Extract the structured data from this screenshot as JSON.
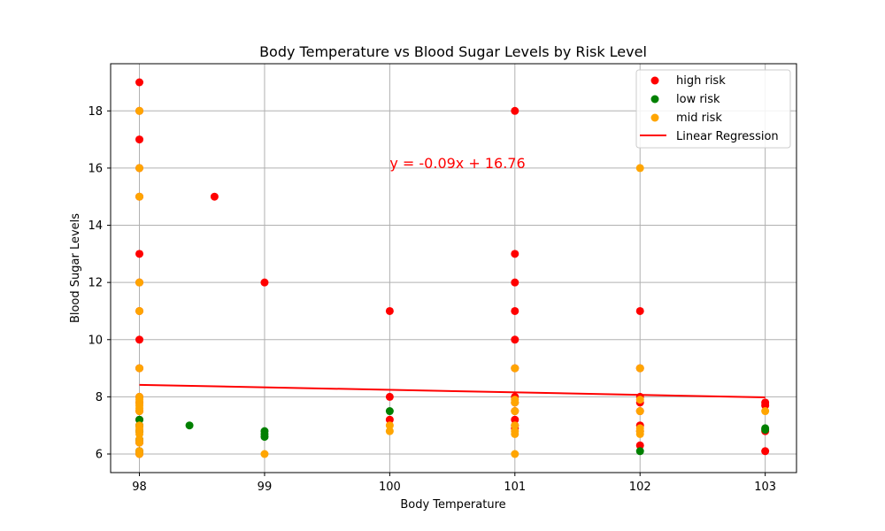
{
  "chart_data": {
    "type": "scatter",
    "title": "Body Temperature vs Blood Sugar Levels by Risk Level",
    "xlabel": "Body Temperature",
    "ylabel": "Blood Sugar Levels",
    "xlim": [
      97.77,
      103.25
    ],
    "ylim": [
      5.35,
      19.65
    ],
    "xticks": [
      98,
      99,
      100,
      101,
      102,
      103
    ],
    "yticks": [
      6,
      8,
      10,
      12,
      14,
      16,
      18
    ],
    "grid": true,
    "legend_position": "top-right",
    "series": [
      {
        "name": "high risk",
        "color": "#ff0000",
        "points": [
          [
            98,
            19
          ],
          [
            98,
            18
          ],
          [
            98,
            17
          ],
          [
            98,
            16
          ],
          [
            98,
            15
          ],
          [
            98,
            13
          ],
          [
            98,
            12
          ],
          [
            98,
            11
          ],
          [
            98,
            10
          ],
          [
            98,
            9
          ],
          [
            98,
            8
          ],
          [
            98,
            7.8
          ],
          [
            98,
            7.5
          ],
          [
            98,
            7.2
          ],
          [
            98,
            7
          ],
          [
            98,
            6.8
          ],
          [
            98,
            6.5
          ],
          [
            98,
            6.4
          ],
          [
            98,
            6.1
          ],
          [
            98,
            6
          ],
          [
            98.6,
            15
          ],
          [
            99,
            12
          ],
          [
            100,
            11
          ],
          [
            100,
            8
          ],
          [
            100,
            7.2
          ],
          [
            101,
            18
          ],
          [
            101,
            13
          ],
          [
            101,
            12
          ],
          [
            101,
            11
          ],
          [
            101,
            10
          ],
          [
            101,
            9
          ],
          [
            101,
            8
          ],
          [
            101,
            7.8
          ],
          [
            101,
            7.5
          ],
          [
            101,
            7.2
          ],
          [
            101,
            7
          ],
          [
            101,
            6.9
          ],
          [
            102,
            11
          ],
          [
            102,
            9
          ],
          [
            102,
            8
          ],
          [
            102,
            7.8
          ],
          [
            102,
            7.5
          ],
          [
            102,
            7
          ],
          [
            102,
            6.8
          ],
          [
            102,
            6.3
          ],
          [
            103,
            7.8
          ],
          [
            103,
            7.7
          ],
          [
            103,
            6.8
          ],
          [
            103,
            6.1
          ]
        ]
      },
      {
        "name": "low risk",
        "color": "#008000",
        "points": [
          [
            98,
            7.2
          ],
          [
            98,
            7
          ],
          [
            98,
            6.8
          ],
          [
            98,
            6.5
          ],
          [
            98,
            6.1
          ],
          [
            98.4,
            7
          ],
          [
            99,
            6.8
          ],
          [
            99,
            6.7
          ],
          [
            99,
            6.6
          ],
          [
            100,
            7.5
          ],
          [
            102,
            6.1
          ],
          [
            103,
            6.9
          ],
          [
            103,
            6.85
          ]
        ]
      },
      {
        "name": "mid risk",
        "color": "#ffa500",
        "points": [
          [
            98,
            18
          ],
          [
            98,
            16
          ],
          [
            98,
            15
          ],
          [
            98,
            12
          ],
          [
            98,
            11
          ],
          [
            98,
            9
          ],
          [
            98,
            8
          ],
          [
            98,
            7.9
          ],
          [
            98,
            7.8
          ],
          [
            98,
            7.7
          ],
          [
            98,
            7.6
          ],
          [
            98,
            7.5
          ],
          [
            98,
            7
          ],
          [
            98,
            6.9
          ],
          [
            98,
            6.8
          ],
          [
            98,
            6.7
          ],
          [
            98,
            6.5
          ],
          [
            98,
            6.4
          ],
          [
            98,
            6.1
          ],
          [
            98,
            6
          ],
          [
            99,
            6
          ],
          [
            100,
            7
          ],
          [
            100,
            6.8
          ],
          [
            101,
            9
          ],
          [
            101,
            7.9
          ],
          [
            101,
            7.8
          ],
          [
            101,
            7.5
          ],
          [
            101,
            7
          ],
          [
            101,
            6.8
          ],
          [
            101,
            6.7
          ],
          [
            101,
            6
          ],
          [
            102,
            16
          ],
          [
            102,
            9
          ],
          [
            102,
            7.9
          ],
          [
            102,
            7.5
          ],
          [
            102,
            6.9
          ],
          [
            102,
            6.8
          ],
          [
            102,
            6.7
          ],
          [
            103,
            7.5
          ]
        ]
      }
    ],
    "regression": {
      "name": "Linear Regression",
      "color": "#ff0000",
      "slope": -0.09,
      "intercept": 16.76,
      "x_range": [
        98,
        103
      ],
      "label": "y = -0.09x + 16.76",
      "label_anchor": [
        100,
        16
      ]
    }
  }
}
